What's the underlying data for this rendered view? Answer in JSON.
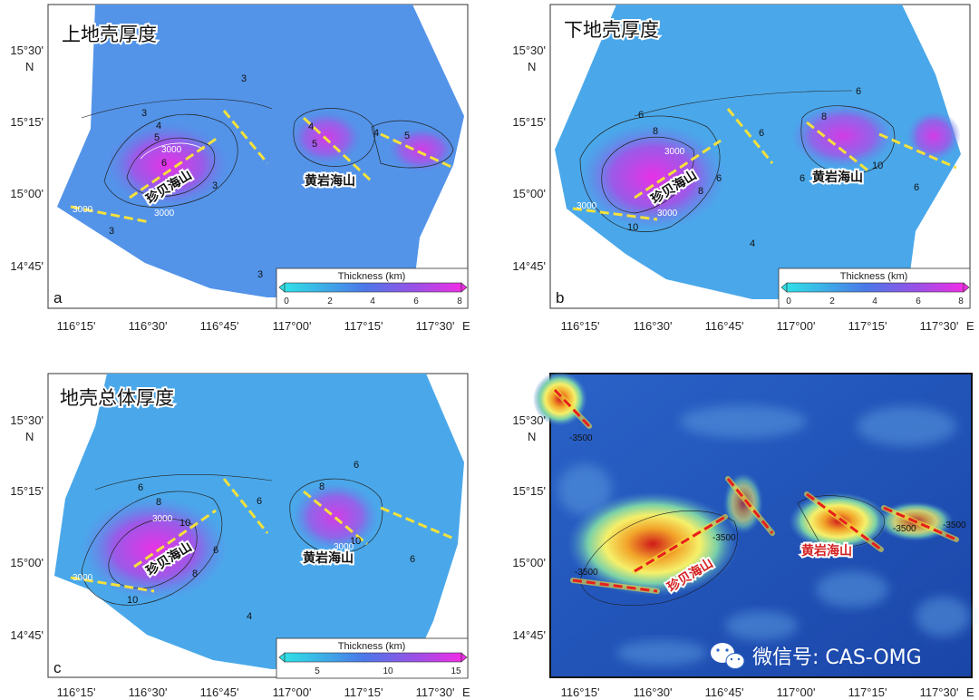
{
  "panels": {
    "a": {
      "letter": "a",
      "title": "上地壳厚度",
      "seamount_zhenbei": "珍贝海山",
      "seamount_huangyan": "黄岩海山",
      "colorbar": {
        "title": "Thickness (km)",
        "ticks": [
          "0",
          "2",
          "4",
          "6",
          "8"
        ],
        "range": [
          0,
          8
        ]
      },
      "contour_labels": [
        "3",
        "3",
        "4",
        "5",
        "6",
        "3000",
        "3000",
        "3000",
        "3",
        "4",
        "5",
        "5",
        "4",
        "3",
        "3"
      ]
    },
    "b": {
      "letter": "b",
      "title": "下地壳厚度",
      "seamount_zhenbei": "珍贝海山",
      "seamount_huangyan": "黄岩海山",
      "colorbar": {
        "title": "Thickness (km)",
        "ticks": [
          "0",
          "2",
          "4",
          "6",
          "8"
        ],
        "range": [
          0,
          8
        ]
      },
      "contour_labels": [
        "6",
        "6",
        "8",
        "3000",
        "3000",
        "3000",
        "10",
        "8",
        "6",
        "6",
        "8",
        "10",
        "6",
        "6",
        "4"
      ]
    },
    "c": {
      "letter": "c",
      "title": "地壳总体厚度",
      "seamount_zhenbei": "珍贝海山",
      "seamount_huangyan": "黄岩海山",
      "colorbar": {
        "title": "Thickness (km)",
        "ticks": [
          "5",
          "10",
          "15"
        ],
        "range": [
          2.5,
          15.5
        ]
      },
      "contour_labels": [
        "6",
        "8",
        "3000",
        "10",
        "3000",
        "10",
        "8",
        "6",
        "6",
        "8",
        "10",
        "3000",
        "6",
        "6",
        "4"
      ]
    },
    "d": {
      "seamount_zhenbei": "珍贝海山",
      "seamount_huangyan": "黄岩海山",
      "depth_labels": [
        "-3500",
        "-3500",
        "-3500",
        "-3500",
        "-3500"
      ]
    }
  },
  "axes": {
    "lon_ticks": [
      "116°15'",
      "116°30'",
      "116°45'",
      "117°00'",
      "117°15'",
      "117°30'"
    ],
    "lon_suffix": "E",
    "lat_ticks": [
      "15°30'",
      "15°15'",
      "15°00'",
      "14°45'"
    ],
    "lat_suffix": "N"
  },
  "watermark": {
    "text": "微信号: CAS-OMG"
  },
  "colors": {
    "thickness_low": "#33d9e6",
    "thickness_mid": "#4d7fe6",
    "thickness_high": "#e62ee6",
    "fault_line": "#f5e13a",
    "bathy_deep": "#1e4fb5",
    "bathy_shallow": "#e83a1e",
    "fault_line_bathy": "#e81e1e"
  }
}
